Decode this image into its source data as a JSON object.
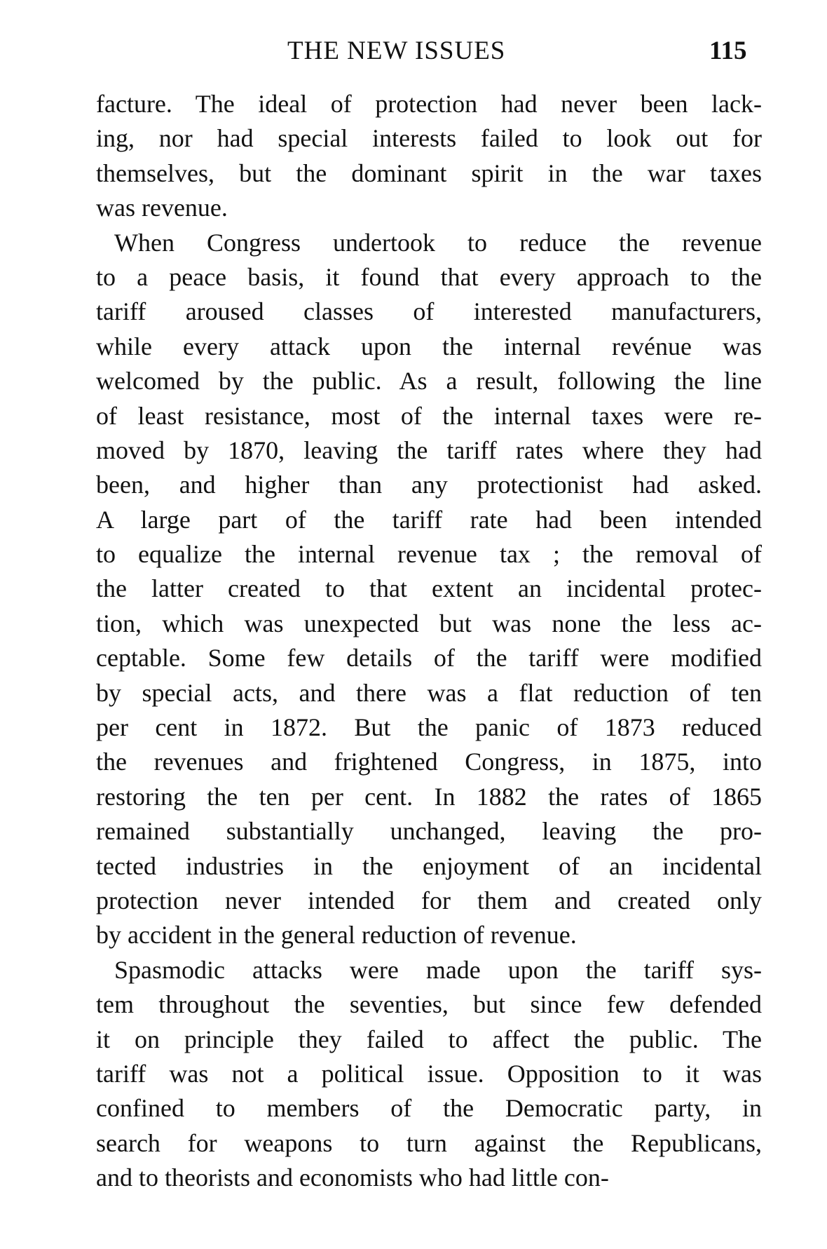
{
  "header": {
    "running_title": "THE NEW ISSUES",
    "page_number": "115"
  },
  "paragraphs": [
    {
      "indent": false,
      "lines": [
        "facture. The ideal of protection had never been lack-",
        "ing, nor had special interests failed to look out for",
        "themselves, but the dominant spirit in the war taxes",
        "was revenue."
      ]
    },
    {
      "indent": true,
      "lines": [
        "When Congress undertook to reduce the revenue",
        "to a peace basis, it found that every approach to the",
        "tariff aroused classes of interested manufacturers,",
        "while every attack upon the internal revénue was",
        "welcomed by the public. As a result, following the line",
        "of least resistance, most of the internal taxes were re-",
        "moved by 1870, leaving the tariff rates where they had",
        "been, and higher than any protectionist had asked.",
        "A large part of the tariff rate had been intended",
        "to equalize the internal revenue tax ; the removal of",
        "the latter created to that extent an incidental protec-",
        "tion, which was unexpected but was none the less ac-",
        "ceptable. Some few details of the tariff were modified",
        "by special acts, and there was a flat reduction of ten",
        "per cent in 1872. But the panic of 1873 reduced",
        "the revenues and frightened Congress, in 1875, into",
        "restoring the ten per cent. In 1882 the rates of 1865",
        "remained substantially unchanged, leaving the pro-",
        "tected industries in the enjoyment of an incidental",
        "protection never intended for them and created only",
        "by accident in the general reduction of revenue."
      ]
    },
    {
      "indent": true,
      "lines": [
        "Spasmodic attacks were made upon the tariff sys-",
        "tem throughout the seventies, but since few defended",
        "it on principle they failed to affect the public. The",
        "tariff was not a political issue. Opposition to it was",
        "confined to members of the Democratic party, in",
        "search for weapons to turn against the Republicans,",
        "and to theorists and economists who had little con-"
      ]
    }
  ]
}
